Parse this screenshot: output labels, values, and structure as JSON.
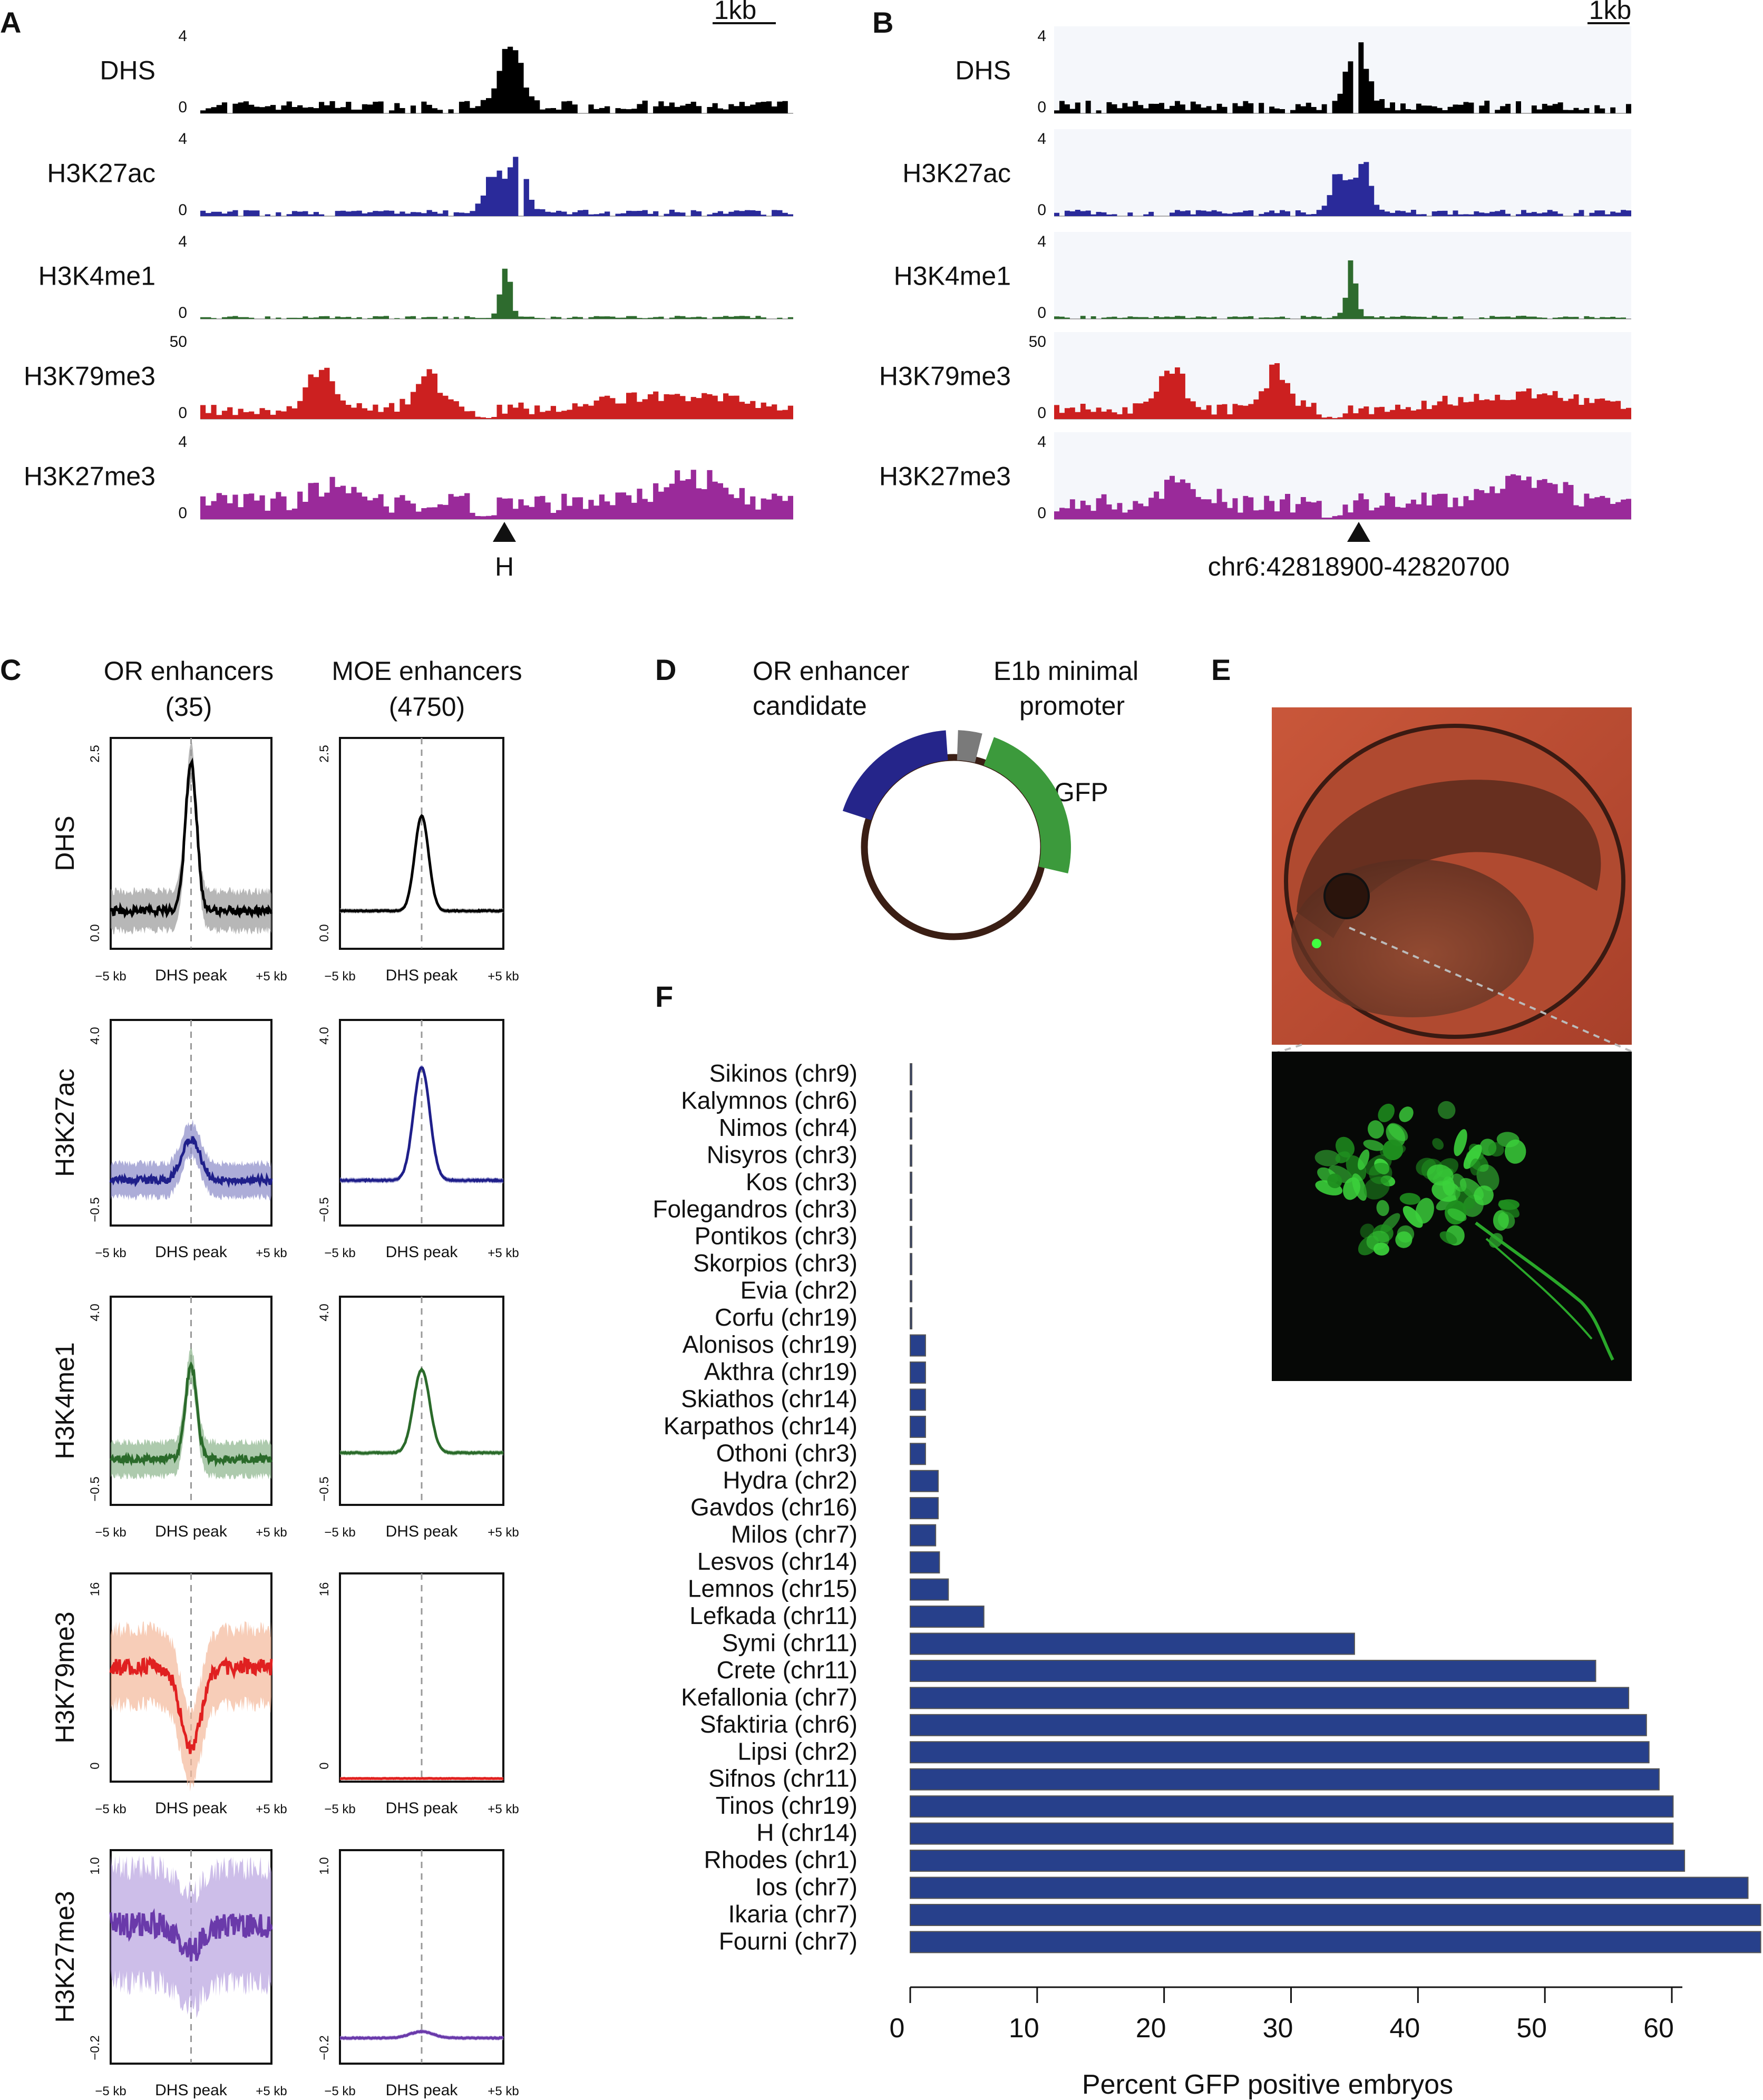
{
  "panel_labels": {
    "a": "A",
    "b": "B",
    "c": "C",
    "d": "D",
    "e": "E",
    "f": "F"
  },
  "genome_tracks": {
    "scale_label": "1kb",
    "panel_a": {
      "bottom_label": "H",
      "tracks": [
        {
          "name": "DHS",
          "ymax": "4",
          "ymin": "0",
          "color": "#000000"
        },
        {
          "name": "H3K27ac",
          "ymax": "4",
          "ymin": "0",
          "color": "#2a2a9a"
        },
        {
          "name": "H3K4me1",
          "ymax": "4",
          "ymin": "0",
          "color": "#2e6b2e"
        },
        {
          "name": "H3K79me3",
          "ymax": "50",
          "ymin": "0",
          "color": "#cc2020"
        },
        {
          "name": "H3K27me3",
          "ymax": "4",
          "ymin": "0",
          "color": "#9a2a9a"
        }
      ]
    },
    "panel_b": {
      "bottom_label": "chr6:42818900-42820700",
      "tracks": [
        {
          "name": "DHS",
          "ymax": "4",
          "ymin": "0",
          "color": "#000000"
        },
        {
          "name": "H3K27ac",
          "ymax": "4",
          "ymin": "0",
          "color": "#2a2a9a"
        },
        {
          "name": "H3K4me1",
          "ymax": "4",
          "ymin": "0",
          "color": "#2e6b2e"
        },
        {
          "name": "H3K79me3",
          "ymax": "50",
          "ymin": "0",
          "color": "#cc2020"
        },
        {
          "name": "H3K27me3",
          "ymax": "4",
          "ymin": "0",
          "color": "#9a2a9a"
        }
      ]
    }
  },
  "profiles": {
    "col1_title": "OR enhancers",
    "col1_count": "(35)",
    "col2_title": "MOE enhancers",
    "col2_count": "(4750)",
    "x_left": "−5 kb",
    "x_mid": "DHS peak",
    "x_right": "+5 kb",
    "rows": [
      {
        "name": "DHS",
        "ymax": "2.5",
        "ymin": "0.0",
        "color": "#000000",
        "band": "#999999"
      },
      {
        "name": "H3K27ac",
        "ymax": "4.0",
        "ymin": "−0.5",
        "color": "#1f1f8a",
        "band": "#8a8ac8"
      },
      {
        "name": "H3K4me1",
        "ymax": "4.0",
        "ymin": "−0.5",
        "color": "#2a6a2a",
        "band": "#8ab48a"
      },
      {
        "name": "H3K79me3",
        "ymax": "16",
        "ymin": "0",
        "color": "#e02020",
        "band": "#f4b89a"
      },
      {
        "name": "H3K27me3",
        "ymax": "1.0",
        "ymin": "−0.2",
        "color": "#6a3aaa",
        "band": "#b8a2e0"
      }
    ]
  },
  "construct": {
    "label_enhancer_1": "OR enhancer",
    "label_enhancer_2": "candidate",
    "label_promoter_1": "E1b minimal",
    "label_promoter_2": "promoter",
    "label_gfp": "GFP"
  },
  "chart_data": {
    "type": "bar",
    "orientation": "horizontal",
    "xlabel": "Percent GFP positive embryos",
    "xticks": [
      0,
      10,
      20,
      30,
      40,
      50,
      60
    ],
    "xlim": [
      0,
      67
    ],
    "bar_color": "#27408b",
    "categories": [
      "Sikinos (chr9)",
      "Kalymnos (chr6)",
      "Nimos (chr4)",
      "Nisyros (chr3)",
      "Kos (chr3)",
      "Folegandros (chr3)",
      "Pontikos (chr3)",
      "Skorpios (chr3)",
      "Evia (chr2)",
      "Corfu (chr19)",
      "Alonisos (chr19)",
      "Akthra (chr19)",
      "Skiathos (chr14)",
      "Karpathos (chr14)",
      "Othoni (chr3)",
      "Hydra (chr2)",
      "Gavdos (chr16)",
      "Milos (chr7)",
      "Lesvos (chr14)",
      "Lemnos (chr15)",
      "Lefkada (chr11)",
      "Symi (chr11)",
      "Crete (chr11)",
      "Kefallonia (chr7)",
      "Sfaktiria (chr6)",
      "Lipsi (chr2)",
      "Sifnos (chr11)",
      "Tinos (chr19)",
      "H (chr14)",
      "Rhodes (chr1)",
      "Ios (chr7)",
      "Ikaria (chr7)",
      "Fourni (chr7)"
    ],
    "values": [
      0,
      0,
      0,
      0,
      0,
      0,
      0,
      0,
      0,
      0,
      1.2,
      1.2,
      1.2,
      1.2,
      1.2,
      2.2,
      2.2,
      2.0,
      2.3,
      3.0,
      5.8,
      35.0,
      54.0,
      56.6,
      58.0,
      58.2,
      59.0,
      60.1,
      60.1,
      61.0,
      66.0,
      67.0,
      67.0
    ]
  }
}
